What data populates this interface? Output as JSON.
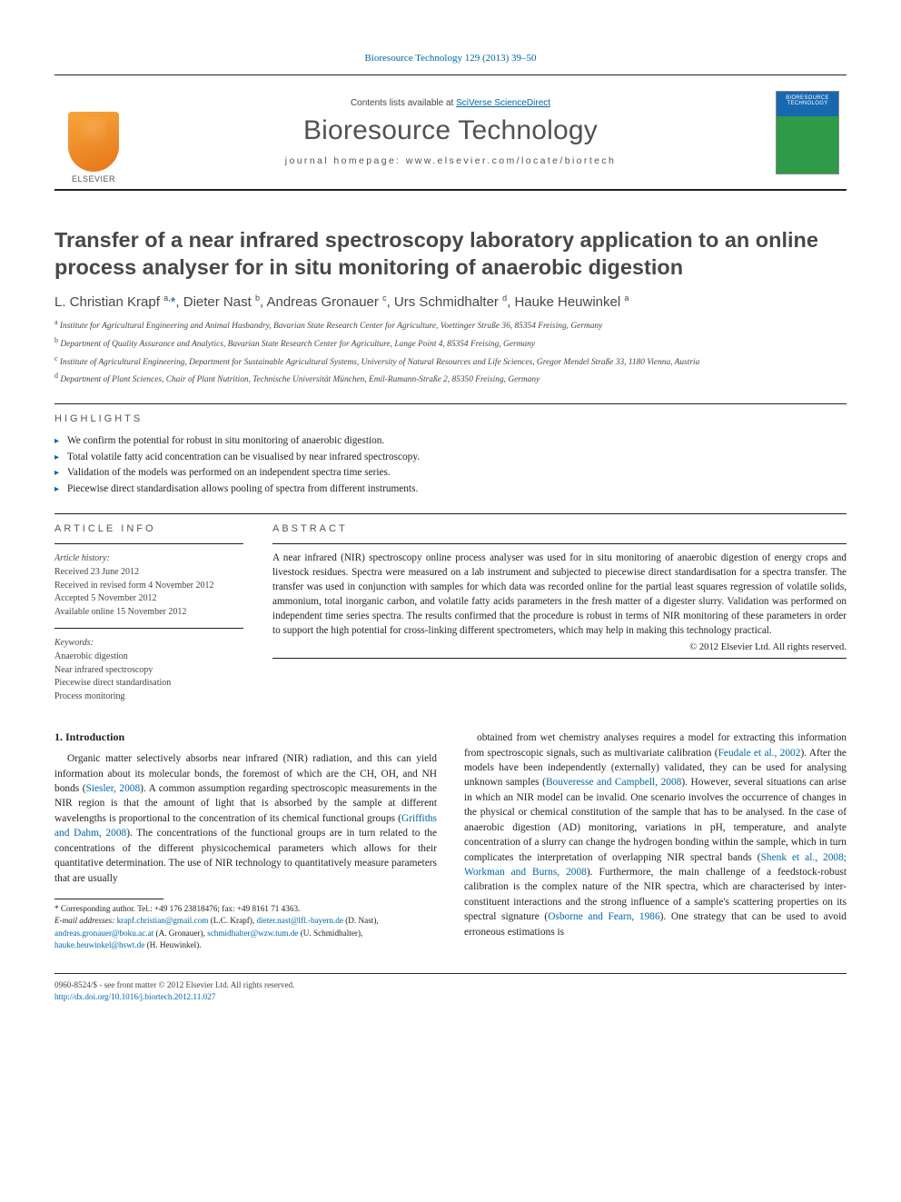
{
  "citation": "Bioresource Technology 129 (2013) 39–50",
  "header": {
    "contents_prefix": "Contents lists available at ",
    "contents_link": "SciVerse ScienceDirect",
    "journal": "Bioresource Technology",
    "homepage": "journal homepage: www.elsevier.com/locate/biortech",
    "publisher_label": "ELSEVIER",
    "cover_label": "BIORESOURCE TECHNOLOGY"
  },
  "title": "Transfer of a near infrared spectroscopy laboratory application to an online process analyser for in situ monitoring of anaerobic digestion",
  "authors_html": "L. Christian Krapf <sup>a,</sup>*, Dieter Nast <sup>b</sup>, Andreas Gronauer <sup>c</sup>, Urs Schmidhalter <sup>d</sup>, Hauke Heuwinkel <sup>a</sup>",
  "affiliations": [
    "a Institute for Agricultural Engineering and Animal Husbandry, Bavarian State Research Center for Agriculture, Voettinger Straße 36, 85354 Freising, Germany",
    "b Department of Quality Assurance and Analytics, Bavarian State Research Center for Agriculture, Lange Point 4, 85354 Freising, Germany",
    "c Institute of Agricultural Engineering, Department for Sustainable Agricultural Systems, University of Natural Resources and Life Sciences, Gregor Mendel Straße 33, 1180 Vienna, Austria",
    "d Department of Plant Sciences, Chair of Plant Nutrition, Technische Universität München, Emil-Ramann-Straße 2, 85350 Freising, Germany"
  ],
  "highlights_label": "HIGHLIGHTS",
  "highlights": [
    "We confirm the potential for robust in situ monitoring of anaerobic digestion.",
    "Total volatile fatty acid concentration can be visualised by near infrared spectroscopy.",
    "Validation of the models was performed on an independent spectra time series.",
    "Piecewise direct standardisation allows pooling of spectra from different instruments."
  ],
  "info_label": "ARTICLE INFO",
  "abstract_label": "ABSTRACT",
  "history_label": "Article history:",
  "history": [
    "Received 23 June 2012",
    "Received in revised form 4 November 2012",
    "Accepted 5 November 2012",
    "Available online 15 November 2012"
  ],
  "keywords_label": "Keywords:",
  "keywords": [
    "Anaerobic digestion",
    "Near infrared spectroscopy",
    "Piecewise direct standardisation",
    "Process monitoring"
  ],
  "abstract": "A near infrared (NIR) spectroscopy online process analyser was used for in situ monitoring of anaerobic digestion of energy crops and livestock residues. Spectra were measured on a lab instrument and subjected to piecewise direct standardisation for a spectra transfer. The transfer was used in conjunction with samples for which data was recorded online for the partial least squares regression of volatile solids, ammonium, total inorganic carbon, and volatile fatty acids parameters in the fresh matter of a digester slurry. Validation was performed on independent time series spectra. The results confirmed that the procedure is robust in terms of NIR monitoring of these parameters in order to support the high potential for cross-linking different spectrometers, which may help in making this technology practical.",
  "abstract_copyright": "© 2012 Elsevier Ltd. All rights reserved.",
  "section1_heading": "1. Introduction",
  "intro_p1": "Organic matter selectively absorbs near infrared (NIR) radiation, and this can yield information about its molecular bonds, the foremost of which are the CH, OH, and NH bonds (Siesler, 2008). A common assumption regarding spectroscopic measurements in the NIR region is that the amount of light that is absorbed by the sample at different wavelengths is proportional to the concentration of its chemical functional groups (Griffiths and Dahm, 2008). The concentrations of the functional groups are in turn related to the concentrations of the different physicochemical parameters which allows for their quantitative determination. The use of NIR technology to quantitatively measure parameters that are usually",
  "intro_p2": "obtained from wet chemistry analyses requires a model for extracting this information from spectroscopic signals, such as multivariate calibration (Feudale et al., 2002). After the models have been independently (externally) validated, they can be used for analysing unknown samples (Bouveresse and Campbell, 2008). However, several situations can arise in which an NIR model can be invalid. One scenario involves the occurrence of changes in the physical or chemical constitution of the sample that has to be analysed. In the case of anaerobic digestion (AD) monitoring, variations in pH, temperature, and analyte concentration of a slurry can change the hydrogen bonding within the sample, which in turn complicates the interpretation of overlapping NIR spectral bands (Shenk et al., 2008; Workman and Burns, 2008). Furthermore, the main challenge of a feedstock-robust calibration is the complex nature of the NIR spectra, which are characterised by inter-constituent interactions and the strong influence of a sample's scattering properties on its spectral signature (Osborne and Fearn, 1986). One strategy that can be used to avoid erroneous estimations is",
  "corr_label": "* Corresponding author. Tel.: +49 176 23818476; fax: +49 8161 71 4363.",
  "emails_label": "E-mail addresses:",
  "emails_text": " krapf.christian@gmail.com (L.C. Krapf), dieter.nast@lfl.-bayern.de (D. Nast), andreas.gronauer@boku.ac.at (A. Gronauer), schmidhalter@wzw.tum.de (U. Schmidhalter), hauke.heuwinkel@hswt.de (H. Heuwinkel).",
  "bottom_issn": "0960-8524/$ - see front matter © 2012 Elsevier Ltd. All rights reserved.",
  "bottom_doi": "http://dx.doi.org/10.1016/j.biortech.2012.11.027",
  "links_in_body": {
    "siesler": "Siesler, 2008",
    "griff": "Griffiths and Dahm, 2008",
    "feudale": "Feudale et al., 2002",
    "bouv": "Bouveresse and Campbell, 2008",
    "shenk": "Shenk et al., 2008; Workman and Burns, 2008",
    "osborne": "Osborne and Fearn, 1986"
  }
}
